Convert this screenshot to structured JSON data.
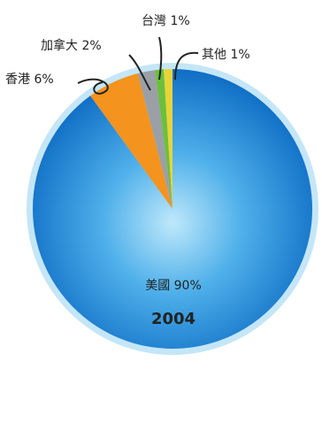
{
  "chart_data": {
    "type": "pie",
    "title": "2004",
    "slices": [
      {
        "label": "美國",
        "value": 90,
        "display": "90%",
        "color": "#1f86d6"
      },
      {
        "label": "香港",
        "value": 6,
        "display": "6%",
        "color": "#f4931e"
      },
      {
        "label": "加拿大",
        "value": 2,
        "display": "2%",
        "color": "#9aa0a6"
      },
      {
        "label": "台灣",
        "value": 1,
        "display": "1%",
        "color": "#6cbf3c"
      },
      {
        "label": "其他",
        "value": 1,
        "display": "1%",
        "color": "#e8d43a"
      }
    ],
    "slice_labels": [
      "美國 90%",
      "香港 6%",
      "加拿大 2%",
      "台灣 1%",
      "其他 1%"
    ],
    "ring_color": "#c4e6f7",
    "legend": "none"
  }
}
